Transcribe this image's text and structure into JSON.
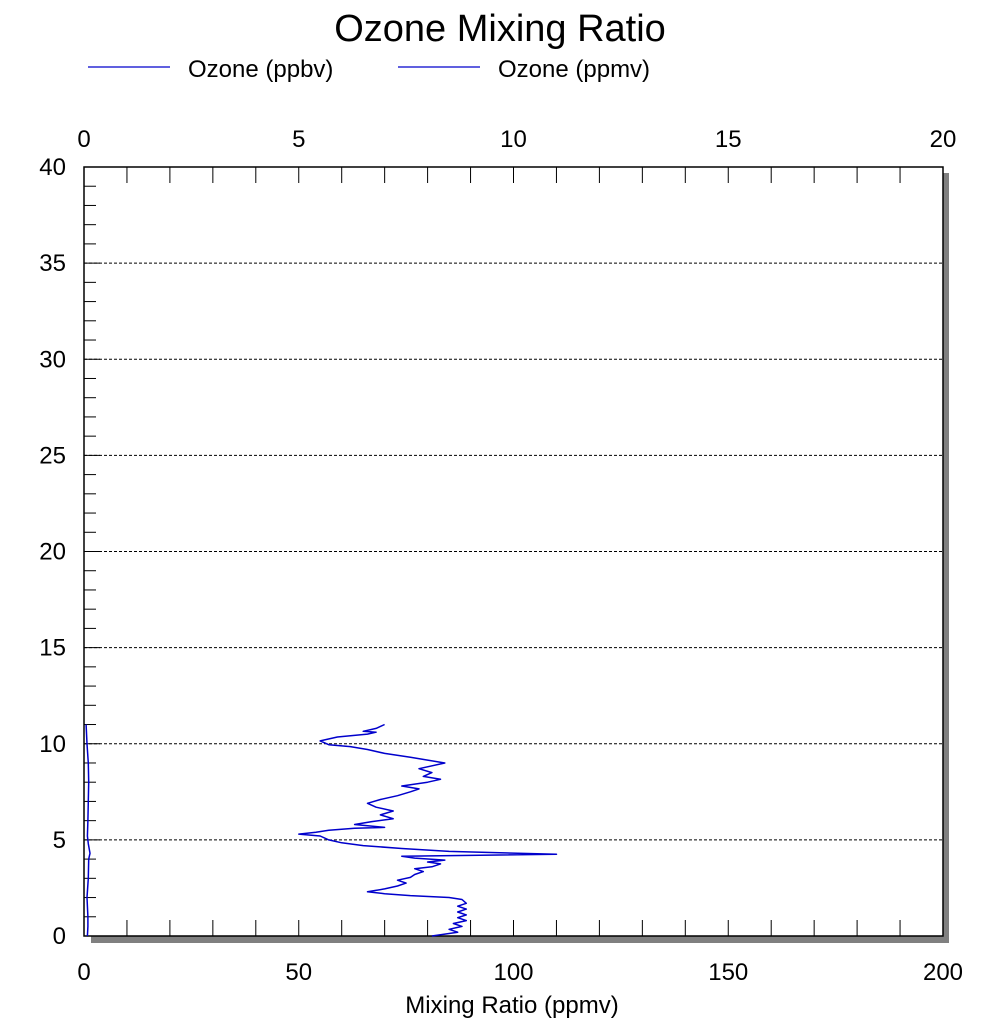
{
  "chart_data": {
    "type": "line",
    "title": "Ozone Mixing Ratio",
    "xlabel": "Mixing Ratio (ppmv)",
    "ylabel": "",
    "grid": "horizontal dashed",
    "legend": [
      {
        "label": "Ozone (ppbv)",
        "color": "#0000cc"
      },
      {
        "label": "Ozone (ppmv)",
        "color": "#0000cc"
      }
    ],
    "bottom_axis": {
      "range": [
        0,
        200
      ],
      "ticks": [
        "0",
        "50",
        "100",
        "150",
        "200"
      ]
    },
    "top_axis": {
      "range": [
        0,
        20
      ],
      "ticks": [
        "0",
        "5",
        "10",
        "15",
        "20"
      ]
    },
    "left_axis": {
      "range": [
        0,
        40
      ],
      "ticks": [
        "0",
        "5",
        "10",
        "15",
        "20",
        "25",
        "30",
        "35",
        "40"
      ]
    },
    "series": [
      {
        "name": "Ozone (ppbv)",
        "axis": "bottom",
        "color": "#0000cc",
        "points": [
          [
            81,
            0.0
          ],
          [
            84,
            0.1
          ],
          [
            87,
            0.2
          ],
          [
            85,
            0.35
          ],
          [
            88,
            0.5
          ],
          [
            86,
            0.65
          ],
          [
            89,
            0.8
          ],
          [
            87,
            0.95
          ],
          [
            89,
            1.1
          ],
          [
            87,
            1.25
          ],
          [
            89,
            1.4
          ],
          [
            87,
            1.55
          ],
          [
            89,
            1.7
          ],
          [
            88,
            1.9
          ],
          [
            85,
            2.0
          ],
          [
            76,
            2.1
          ],
          [
            70,
            2.2
          ],
          [
            66,
            2.3
          ],
          [
            70,
            2.45
          ],
          [
            73,
            2.6
          ],
          [
            75,
            2.75
          ],
          [
            73,
            2.9
          ],
          [
            76,
            3.05
          ],
          [
            77,
            3.2
          ],
          [
            79,
            3.35
          ],
          [
            77,
            3.5
          ],
          [
            81,
            3.6
          ],
          [
            83,
            3.75
          ],
          [
            80,
            3.85
          ],
          [
            84,
            3.95
          ],
          [
            77,
            4.05
          ],
          [
            74,
            4.15
          ],
          [
            110,
            4.25
          ],
          [
            85,
            4.4
          ],
          [
            74,
            4.55
          ],
          [
            65,
            4.7
          ],
          [
            60,
            4.85
          ],
          [
            57,
            5.0
          ],
          [
            55,
            5.2
          ],
          [
            50,
            5.3
          ],
          [
            54,
            5.4
          ],
          [
            57,
            5.5
          ],
          [
            63,
            5.6
          ],
          [
            70,
            5.65
          ],
          [
            63,
            5.8
          ],
          [
            67,
            5.95
          ],
          [
            72,
            6.1
          ],
          [
            69,
            6.3
          ],
          [
            72,
            6.5
          ],
          [
            68,
            6.7
          ],
          [
            66,
            6.9
          ],
          [
            69,
            7.1
          ],
          [
            73,
            7.3
          ],
          [
            76,
            7.5
          ],
          [
            78,
            7.65
          ],
          [
            74,
            7.8
          ],
          [
            80,
            8.0
          ],
          [
            83,
            8.15
          ],
          [
            79,
            8.3
          ],
          [
            81,
            8.5
          ],
          [
            78,
            8.7
          ],
          [
            84,
            9.0
          ],
          [
            80,
            9.15
          ],
          [
            76,
            9.3
          ],
          [
            70,
            9.5
          ],
          [
            66,
            9.7
          ],
          [
            62,
            9.85
          ],
          [
            57,
            9.95
          ],
          [
            55,
            10.15
          ],
          [
            59,
            10.35
          ],
          [
            66,
            10.5
          ],
          [
            68,
            10.6
          ],
          [
            65,
            10.65
          ],
          [
            68,
            10.8
          ],
          [
            70,
            11.0
          ]
        ]
      },
      {
        "name": "Ozone (ppmv)",
        "axis": "top",
        "color": "#0000cc",
        "points": [
          [
            0.08,
            0.0
          ],
          [
            0.09,
            0.5
          ],
          [
            0.09,
            1.0
          ],
          [
            0.07,
            2.0
          ],
          [
            0.1,
            3.0
          ],
          [
            0.11,
            4.0
          ],
          [
            0.14,
            4.3
          ],
          [
            0.1,
            4.8
          ],
          [
            0.08,
            5.2
          ],
          [
            0.09,
            6.0
          ],
          [
            0.1,
            7.0
          ],
          [
            0.11,
            8.0
          ],
          [
            0.1,
            9.0
          ],
          [
            0.07,
            10.0
          ],
          [
            0.05,
            11.0
          ]
        ]
      }
    ]
  }
}
